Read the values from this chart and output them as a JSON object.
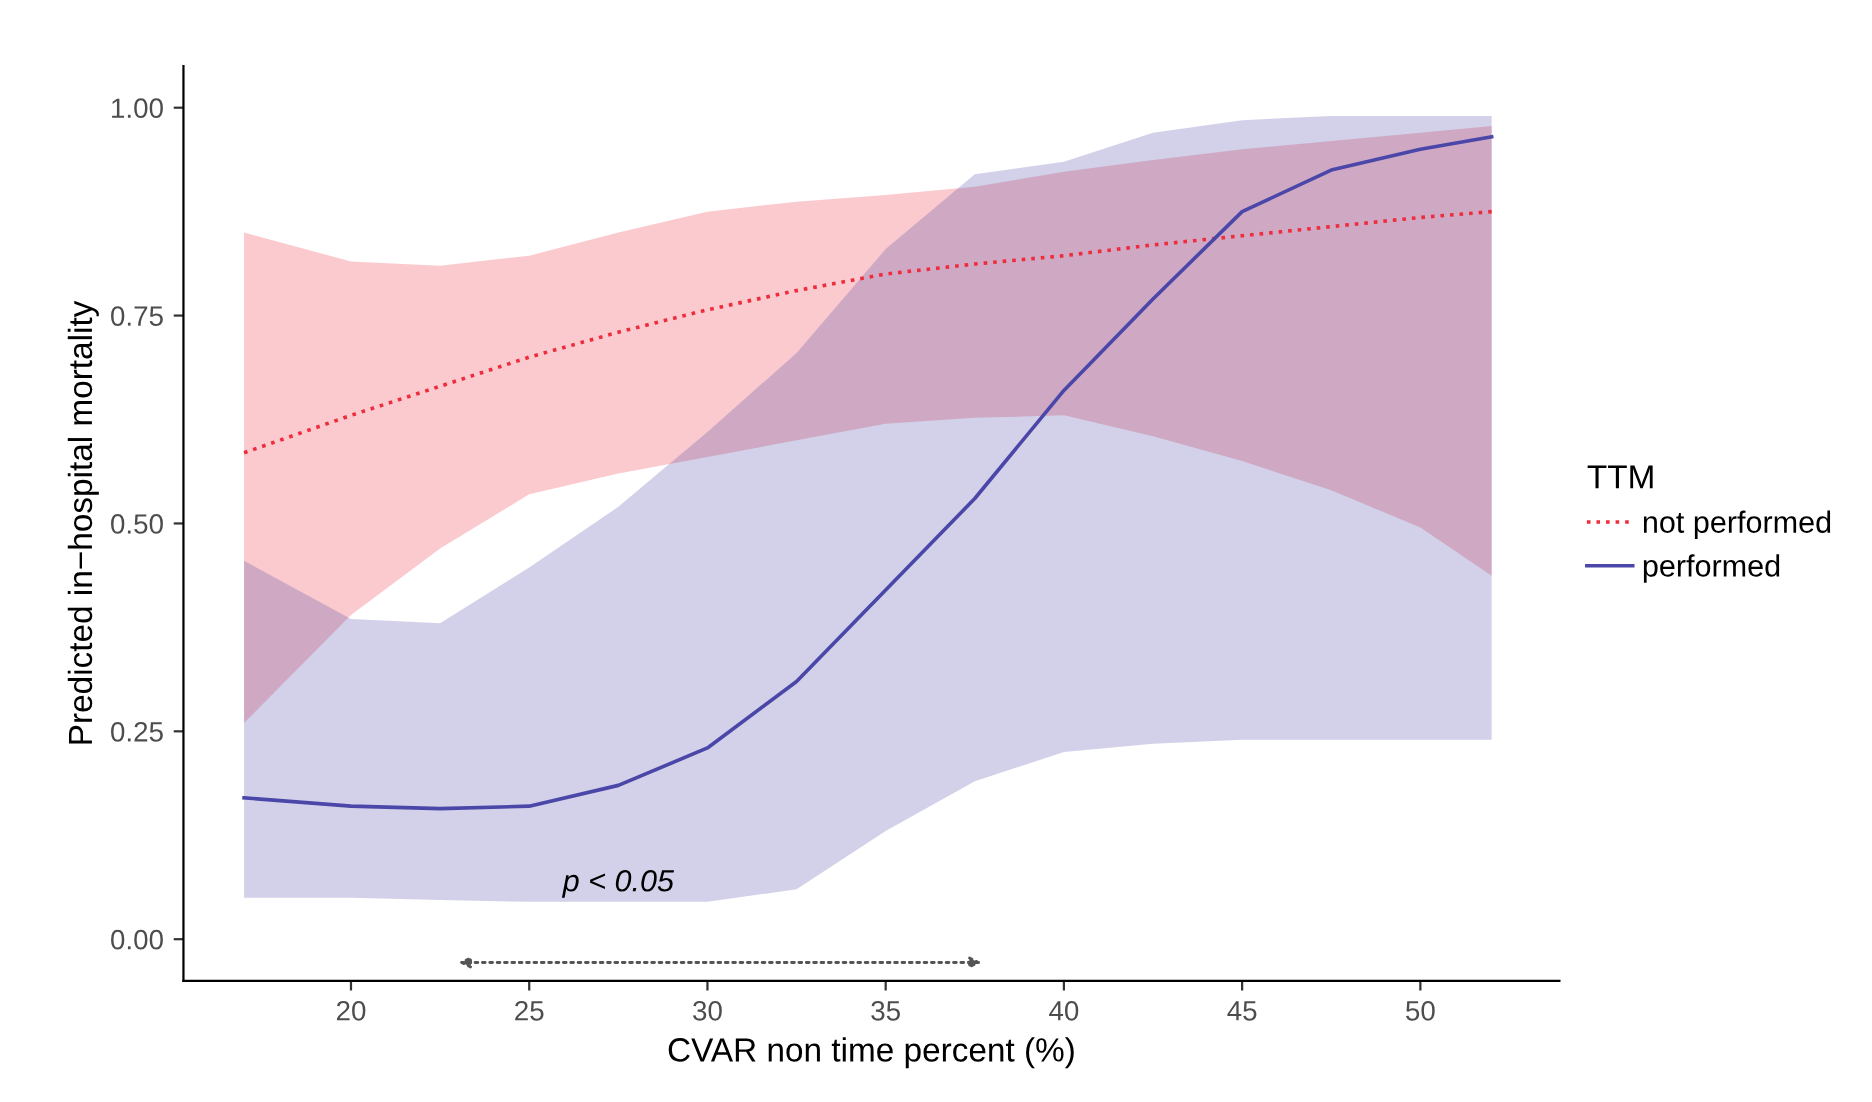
{
  "chart_data": {
    "type": "line",
    "xlabel": "CVAR non time percent (%)",
    "ylabel": "Predicted in−hospital mortality",
    "legend_title": "TTM",
    "xlim": [
      15.3,
      53.9
    ],
    "ylim": [
      -0.05,
      1.05
    ],
    "xticks": [
      20,
      25,
      30,
      35,
      40,
      45,
      50
    ],
    "yticks": [
      {
        "value": 0,
        "label": "0.00"
      },
      {
        "value": 0.25,
        "label": "0.25"
      },
      {
        "value": 0.5,
        "label": "0.50"
      },
      {
        "value": 0.75,
        "label": "0.75"
      },
      {
        "value": 1,
        "label": "1.00"
      }
    ],
    "grid": false,
    "legend": "right",
    "marker": "none",
    "series": [
      {
        "name": "not performed",
        "color": "#ee2c3c",
        "line_style": "dotted",
        "x": [
          17,
          20,
          22.5,
          25,
          27.5,
          30,
          32.5,
          35,
          37.5,
          40,
          42.5,
          45,
          47.5,
          50,
          52
        ],
        "values": [
          0.585,
          0.63,
          0.665,
          0.7,
          0.73,
          0.757,
          0.78,
          0.8,
          0.812,
          0.822,
          0.835,
          0.846,
          0.857,
          0.868,
          0.875
        ],
        "upper": [
          0.85,
          0.815,
          0.81,
          0.822,
          0.85,
          0.875,
          0.887,
          0.895,
          0.905,
          0.923,
          0.937,
          0.95,
          0.96,
          0.97,
          0.978
        ],
        "lower": [
          0.26,
          0.39,
          0.47,
          0.535,
          0.56,
          0.58,
          0.6,
          0.62,
          0.627,
          0.63,
          0.605,
          0.575,
          0.54,
          0.495,
          0.437
        ]
      },
      {
        "name": "performed",
        "color": "#4b47a8",
        "line_style": "solid",
        "x": [
          17,
          20,
          22.5,
          25,
          27.5,
          30,
          32.5,
          35,
          37.5,
          40,
          42.5,
          45,
          47.5,
          50,
          52
        ],
        "values": [
          0.17,
          0.16,
          0.157,
          0.16,
          0.185,
          0.23,
          0.31,
          0.42,
          0.53,
          0.66,
          0.77,
          0.875,
          0.925,
          0.95,
          0.965
        ],
        "upper": [
          0.455,
          0.385,
          0.38,
          0.447,
          0.52,
          0.61,
          0.705,
          0.83,
          0.92,
          0.935,
          0.97,
          0.985,
          0.99,
          0.99,
          0.99
        ],
        "lower": [
          0.05,
          0.05,
          0.047,
          0.045,
          0.045,
          0.045,
          0.06,
          0.13,
          0.19,
          0.225,
          0.235,
          0.24,
          0.24,
          0.24,
          0.24
        ]
      }
    ],
    "annotations": [
      {
        "text": "p < 0.05",
        "x": 27.5,
        "y": 0.05
      }
    ]
  }
}
